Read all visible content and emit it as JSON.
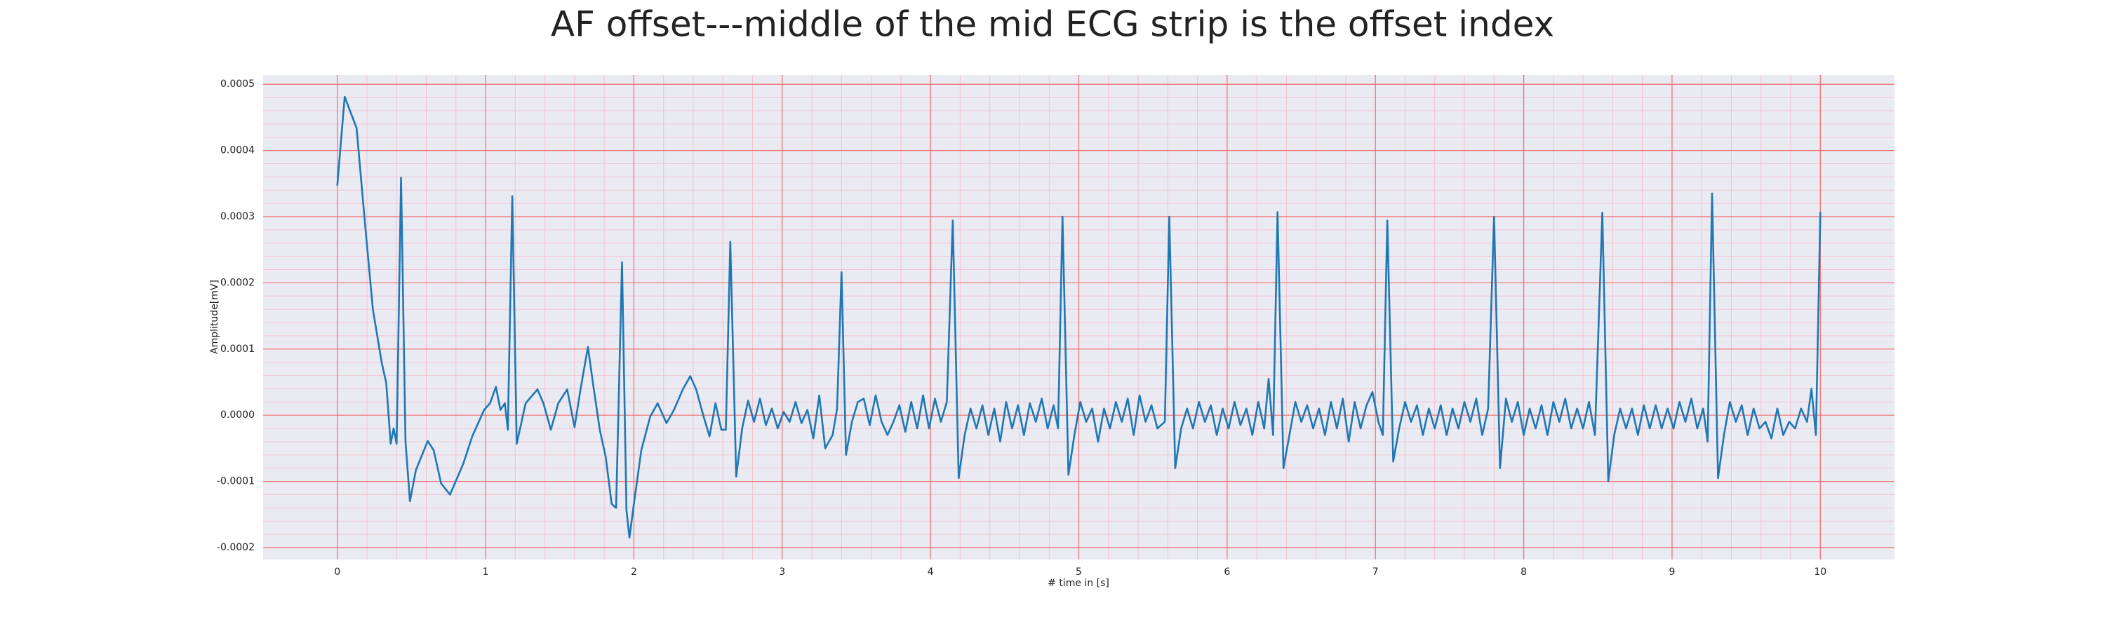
{
  "chart_data": {
    "type": "line",
    "title": "AF offset---middle of the mid ECG strip is the offset index",
    "xlabel": "# time in [s]",
    "ylabel": "Amplitude[mV]",
    "color": "#1f77b4",
    "grid": true,
    "xlim": [
      -0.5,
      10.5
    ],
    "xticks": [
      0,
      1,
      2,
      3,
      4,
      5,
      6,
      7,
      8,
      9,
      10
    ],
    "ylim": [
      -0.000218,
      0.000514
    ],
    "yticks": [
      -0.0002,
      -0.0001,
      {
        "value": 0,
        "label": "0.0000"
      },
      0.0001,
      0.0002,
      0.0003,
      0.0004,
      0.0005
    ],
    "x": [
      0,
      0.05,
      0.13,
      0.19,
      0.24,
      0.3,
      0.33,
      0.36,
      0.38,
      0.4,
      0.43,
      0.46,
      0.49,
      0.53,
      0.61,
      0.65,
      0.7,
      0.76,
      0.85,
      0.91,
      0.99,
      1.03,
      1.07,
      1.1,
      1.13,
      1.15,
      1.18,
      1.21,
      1.27,
      1.35,
      1.39,
      1.44,
      1.49,
      1.55,
      1.6,
      1.64,
      1.69,
      1.73,
      1.77,
      1.81,
      1.85,
      1.88,
      1.92,
      1.95,
      1.97,
      2.0,
      2.05,
      2.11,
      2.16,
      2.22,
      2.27,
      2.33,
      2.38,
      2.42,
      2.47,
      2.51,
      2.55,
      2.59,
      2.62,
      2.65,
      2.69,
      2.73,
      2.77,
      2.81,
      2.85,
      2.89,
      2.93,
      2.97,
      3.01,
      3.05,
      3.09,
      3.13,
      3.17,
      3.21,
      3.25,
      3.29,
      3.34,
      3.37,
      3.4,
      3.43,
      3.47,
      3.51,
      3.55,
      3.59,
      3.63,
      3.67,
      3.71,
      3.75,
      3.79,
      3.83,
      3.87,
      3.91,
      3.95,
      3.99,
      4.03,
      4.07,
      4.11,
      4.15,
      4.19,
      4.23,
      4.27,
      4.31,
      4.35,
      4.39,
      4.43,
      4.47,
      4.51,
      4.55,
      4.59,
      4.63,
      4.67,
      4.71,
      4.75,
      4.79,
      4.83,
      4.86,
      4.89,
      4.93,
      4.97,
      5.01,
      5.05,
      5.09,
      5.13,
      5.17,
      5.21,
      5.25,
      5.29,
      5.33,
      5.37,
      5.41,
      5.45,
      5.49,
      5.53,
      5.58,
      5.61,
      5.65,
      5.69,
      5.73,
      5.77,
      5.81,
      5.85,
      5.89,
      5.93,
      5.97,
      6.01,
      6.05,
      6.09,
      6.13,
      6.17,
      6.21,
      6.25,
      6.28,
      6.31,
      6.34,
      6.38,
      6.42,
      6.46,
      6.5,
      6.54,
      6.58,
      6.62,
      6.66,
      6.7,
      6.74,
      6.78,
      6.82,
      6.86,
      6.9,
      6.94,
      6.98,
      7.02,
      7.05,
      7.08,
      7.12,
      7.16,
      7.2,
      7.24,
      7.28,
      7.32,
      7.36,
      7.4,
      7.44,
      7.48,
      7.52,
      7.56,
      7.6,
      7.64,
      7.68,
      7.72,
      7.76,
      7.8,
      7.84,
      7.88,
      7.92,
      7.96,
      8.0,
      8.04,
      8.08,
      8.12,
      8.16,
      8.2,
      8.24,
      8.28,
      8.32,
      8.36,
      8.4,
      8.44,
      8.48,
      8.53,
      8.57,
      8.61,
      8.65,
      8.69,
      8.73,
      8.77,
      8.81,
      8.85,
      8.89,
      8.93,
      8.97,
      9.01,
      9.05,
      9.09,
      9.13,
      9.17,
      9.21,
      9.24,
      9.27,
      9.31,
      9.35,
      9.39,
      9.43,
      9.47,
      9.51,
      9.55,
      9.59,
      9.63,
      9.67,
      9.71,
      9.75,
      9.79,
      9.83,
      9.87,
      9.91,
      9.94,
      9.97,
      10.0
    ],
    "values": [
      0.000347,
      0.000481,
      0.000434,
      0.000282,
      0.00016,
      7.9e-05,
      4.9e-05,
      -4.3e-05,
      -2e-05,
      -4.3e-05,
      0.000359,
      -4e-05,
      -0.00013,
      -8.3e-05,
      -3.9e-05,
      -5.3e-05,
      -0.000103,
      -0.00012,
      -7.3e-05,
      -3.2e-05,
      8e-06,
      1.8e-05,
      4.3e-05,
      8e-06,
      1.8e-05,
      -2.2e-05,
      0.000331,
      -4.3e-05,
      1.8e-05,
      3.9e-05,
      1.8e-05,
      -2.2e-05,
      1.8e-05,
      3.9e-05,
      -1.8e-05,
      3.9e-05,
      0.000103,
      3.9e-05,
      -2.2e-05,
      -6.3e-05,
      -0.000134,
      -0.00014,
      0.000231,
      -0.000144,
      -0.000185,
      -0.000134,
      -5.3e-05,
      -2e-06,
      1.8e-05,
      -1.2e-05,
      8e-06,
      3.9e-05,
      5.9e-05,
      3.9e-05,
      -2e-06,
      -3.2e-05,
      1.8e-05,
      -2.2e-05,
      -2.2e-05,
      0.000262,
      -9.3e-05,
      -2e-05,
      2.2e-05,
      -1e-05,
      2.5e-05,
      -1.5e-05,
      1e-05,
      -2e-05,
      5e-06,
      -1e-05,
      2e-05,
      -1.2e-05,
      8e-06,
      -3.5e-05,
      3e-05,
      -5e-05,
      -3e-05,
      1e-05,
      0.000216,
      -6e-05,
      -1e-05,
      2e-05,
      2.5e-05,
      -1.5e-05,
      3e-05,
      -1e-05,
      -3e-05,
      -1e-05,
      1.5e-05,
      -2.5e-05,
      2e-05,
      -2e-05,
      3e-05,
      -2e-05,
      2.5e-05,
      -1e-05,
      2e-05,
      0.000294,
      -9.5e-05,
      -3e-05,
      1e-05,
      -2e-05,
      1.5e-05,
      -3e-05,
      1e-05,
      -4e-05,
      2e-05,
      -2e-05,
      1.5e-05,
      -3e-05,
      1.8e-05,
      -1e-05,
      2.5e-05,
      -2e-05,
      1.5e-05,
      -2e-05,
      0.0003,
      -9e-05,
      -3e-05,
      2e-05,
      -1e-05,
      1e-05,
      -4e-05,
      1e-05,
      -2e-05,
      2e-05,
      -1e-05,
      2.5e-05,
      -3e-05,
      3e-05,
      -1e-05,
      1.5e-05,
      -2e-05,
      -1e-05,
      0.0003,
      -8e-05,
      -2e-05,
      1e-05,
      -2e-05,
      2e-05,
      -1e-05,
      1.5e-05,
      -3e-05,
      1e-05,
      -2e-05,
      2e-05,
      -1.5e-05,
      1e-05,
      -3e-05,
      2e-05,
      -2e-05,
      5.5e-05,
      -3e-05,
      0.000307,
      -8e-05,
      -3e-05,
      2e-05,
      -1e-05,
      1.5e-05,
      -2e-05,
      1e-05,
      -3e-05,
      2e-05,
      -2e-05,
      2.5e-05,
      -4e-05,
      2e-05,
      -2e-05,
      1.5e-05,
      3.5e-05,
      -1e-05,
      -3e-05,
      0.000294,
      -7e-05,
      -2e-05,
      2e-05,
      -1e-05,
      1.5e-05,
      -3e-05,
      1e-05,
      -2e-05,
      1.5e-05,
      -3e-05,
      1e-05,
      -2e-05,
      2e-05,
      -1e-05,
      2.5e-05,
      -3e-05,
      1e-05,
      0.0003,
      -8e-05,
      2.5e-05,
      -1e-05,
      2e-05,
      -3e-05,
      1e-05,
      -2e-05,
      1.5e-05,
      -3e-05,
      2e-05,
      -1e-05,
      2.5e-05,
      -2e-05,
      1e-05,
      -2e-05,
      2e-05,
      -3e-05,
      0.000306,
      -0.0001,
      -3e-05,
      1e-05,
      -2e-05,
      1e-05,
      -3e-05,
      1.5e-05,
      -2e-05,
      1.5e-05,
      -2e-05,
      1e-05,
      -2e-05,
      2e-05,
      -1e-05,
      2.5e-05,
      -2e-05,
      1e-05,
      -4e-05,
      0.000335,
      -9.5e-05,
      -3e-05,
      2e-05,
      -1e-05,
      1.5e-05,
      -3e-05,
      1e-05,
      -2e-05,
      -1e-05,
      -3.5e-05,
      1e-05,
      -3e-05,
      -1e-05,
      -2e-05,
      1e-05,
      -1e-05,
      4e-05,
      -3e-05,
      0.000307
    ]
  }
}
